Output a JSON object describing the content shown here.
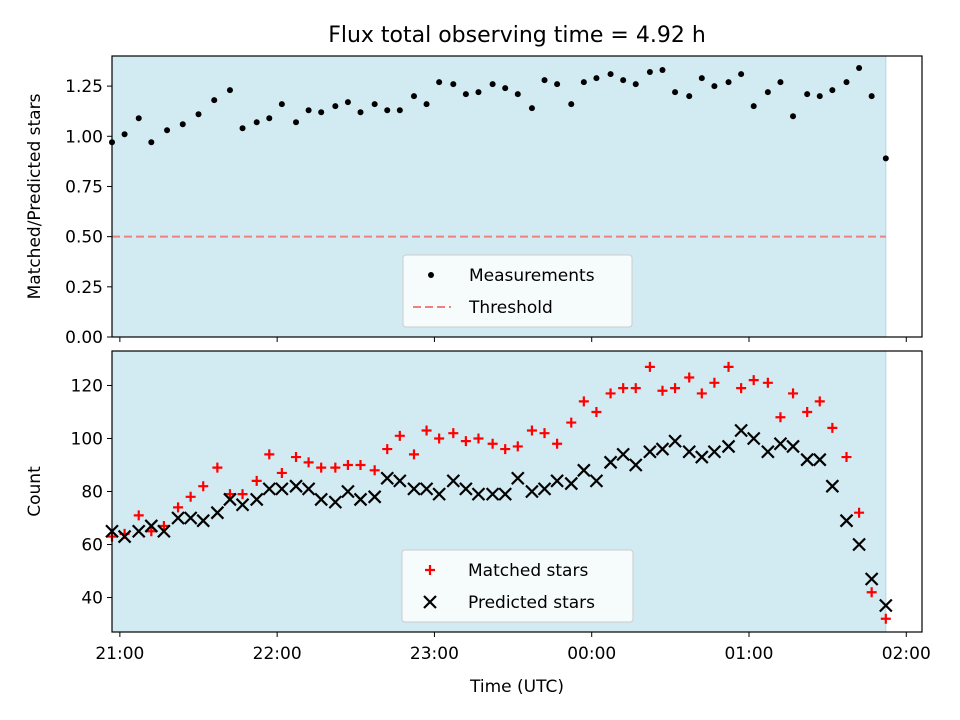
{
  "chart_data": [
    {
      "type": "scatter",
      "title": "Flux total observing time = 4.92 h",
      "xlabel": "",
      "ylabel": "Matched/Predicted stars",
      "x_unit": "hours (UTC, continuing past midnight)",
      "xlim": [
        20.95,
        26.1
      ],
      "ylim": [
        0,
        1.4
      ],
      "yticks": [
        "0.00",
        "0.25",
        "0.50",
        "0.75",
        "1.00",
        "1.25"
      ],
      "xticks_visible": false,
      "observing_span": [
        20.95,
        25.87
      ],
      "observing_span_color": "#add8e6",
      "legend_position": "lower center",
      "threshold": {
        "name": "Threshold",
        "y": 0.5,
        "color": "#f08080",
        "style": "dashed"
      },
      "series": [
        {
          "name": "Measurements",
          "marker": "dot",
          "color": "#000000",
          "x": [
            20.95,
            21.03,
            21.12,
            21.2,
            21.3,
            21.4,
            21.5,
            21.6,
            21.7,
            21.78,
            21.87,
            21.95,
            22.03,
            22.12,
            22.2,
            22.28,
            22.37,
            22.45,
            22.53,
            22.62,
            22.7,
            22.78,
            22.87,
            22.95,
            23.03,
            23.12,
            23.2,
            23.28,
            23.37,
            23.45,
            23.53,
            23.62,
            23.7,
            23.78,
            23.87,
            23.95,
            24.03,
            24.12,
            24.2,
            24.28,
            24.37,
            24.45,
            24.53,
            24.62,
            24.7,
            24.78,
            24.87,
            24.95,
            25.03,
            25.12,
            25.2,
            25.28,
            25.37,
            25.45,
            25.53,
            25.62,
            25.7,
            25.78,
            25.87
          ],
          "y": [
            0.97,
            1.01,
            1.09,
            0.97,
            1.03,
            1.06,
            1.11,
            1.18,
            1.23,
            1.04,
            1.07,
            1.09,
            1.16,
            1.07,
            1.13,
            1.12,
            1.15,
            1.17,
            1.12,
            1.16,
            1.13,
            1.13,
            1.2,
            1.16,
            1.27,
            1.26,
            1.21,
            1.22,
            1.26,
            1.24,
            1.21,
            1.14,
            1.28,
            1.26,
            1.16,
            1.27,
            1.29,
            1.31,
            1.28,
            1.26,
            1.32,
            1.33,
            1.22,
            1.2,
            1.29,
            1.25,
            1.27,
            1.31,
            1.15,
            1.22,
            1.27,
            1.1,
            1.21,
            1.2,
            1.23,
            1.27,
            1.34,
            1.2,
            0.89
          ]
        }
      ]
    },
    {
      "type": "scatter",
      "title": "",
      "xlabel": "Time (UTC)",
      "ylabel": "Count",
      "x_unit": "hours (UTC, continuing past midnight)",
      "xlim": [
        20.95,
        26.1
      ],
      "ylim": [
        27,
        133
      ],
      "yticks": [
        "40",
        "60",
        "80",
        "100",
        "120"
      ],
      "xticks": [
        {
          "x": 21,
          "label": "21:00"
        },
        {
          "x": 22,
          "label": "22:00"
        },
        {
          "x": 23,
          "label": "23:00"
        },
        {
          "x": 24,
          "label": "00:00"
        },
        {
          "x": 25,
          "label": "01:00"
        },
        {
          "x": 26,
          "label": "02:00"
        }
      ],
      "observing_span": [
        20.95,
        25.87
      ],
      "observing_span_color": "#add8e6",
      "legend_position": "lower center",
      "series": [
        {
          "name": "Matched stars",
          "marker": "plus",
          "color": "#ff0000",
          "x": [
            20.95,
            21.03,
            21.12,
            21.2,
            21.28,
            21.37,
            21.45,
            21.53,
            21.62,
            21.7,
            21.78,
            21.87,
            21.95,
            22.03,
            22.12,
            22.2,
            22.28,
            22.37,
            22.45,
            22.53,
            22.62,
            22.7,
            22.78,
            22.87,
            22.95,
            23.03,
            23.12,
            23.2,
            23.28,
            23.37,
            23.45,
            23.53,
            23.62,
            23.7,
            23.78,
            23.87,
            23.95,
            24.03,
            24.12,
            24.2,
            24.28,
            24.37,
            24.45,
            24.53,
            24.62,
            24.7,
            24.78,
            24.87,
            24.95,
            25.03,
            25.12,
            25.2,
            25.28,
            25.37,
            25.45,
            25.53,
            25.62,
            25.7,
            25.78,
            25.87
          ],
          "y": [
            63,
            64,
            71,
            65,
            67,
            74,
            78,
            82,
            89,
            79,
            79,
            84,
            94,
            87,
            93,
            91,
            89,
            89,
            90,
            90,
            88,
            96,
            101,
            94,
            103,
            100,
            102,
            99,
            100,
            98,
            96,
            97,
            103,
            102,
            98,
            106,
            114,
            110,
            117,
            119,
            119,
            127,
            118,
            119,
            123,
            117,
            121,
            127,
            119,
            122,
            121,
            108,
            117,
            110,
            114,
            104,
            93,
            72,
            42,
            32
          ]
        },
        {
          "name": "Predicted stars",
          "marker": "x",
          "color": "#000000",
          "x": [
            20.95,
            21.03,
            21.12,
            21.2,
            21.28,
            21.37,
            21.45,
            21.53,
            21.62,
            21.7,
            21.78,
            21.87,
            21.95,
            22.03,
            22.12,
            22.2,
            22.28,
            22.37,
            22.45,
            22.53,
            22.62,
            22.7,
            22.78,
            22.87,
            22.95,
            23.03,
            23.12,
            23.2,
            23.28,
            23.37,
            23.45,
            23.53,
            23.62,
            23.7,
            23.78,
            23.87,
            23.95,
            24.03,
            24.12,
            24.2,
            24.28,
            24.37,
            24.45,
            24.53,
            24.62,
            24.7,
            24.78,
            24.87,
            24.95,
            25.03,
            25.12,
            25.2,
            25.28,
            25.37,
            25.45,
            25.53,
            25.62,
            25.7,
            25.78,
            25.87
          ],
          "y": [
            65,
            63,
            65,
            67,
            65,
            70,
            70,
            69,
            72,
            77,
            75,
            77,
            81,
            81,
            82,
            81,
            77,
            76,
            80,
            77,
            78,
            85,
            84,
            81,
            81,
            79,
            84,
            81,
            79,
            79,
            79,
            85,
            80,
            81,
            84,
            83,
            88,
            84,
            91,
            94,
            90,
            95,
            96,
            99,
            95,
            93,
            95,
            97,
            103,
            100,
            95,
            98,
            97,
            92,
            92,
            82,
            69,
            60,
            47,
            37
          ]
        }
      ]
    }
  ]
}
